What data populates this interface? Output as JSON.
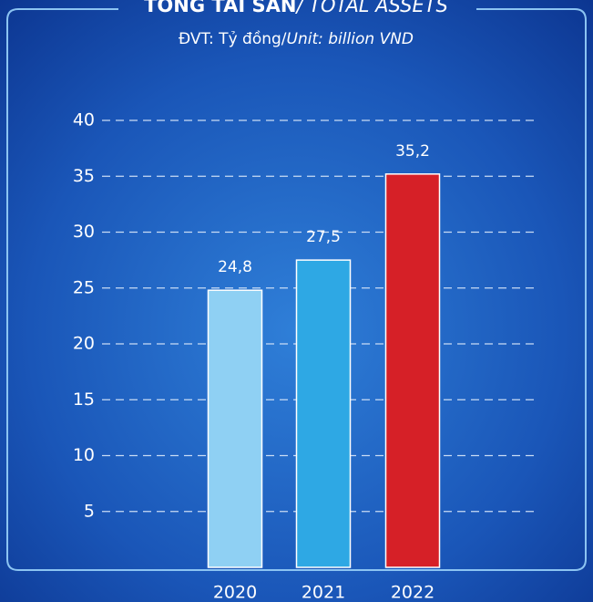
{
  "chart_data": {
    "type": "bar",
    "title": "TỔNG TÀI SẢN",
    "title_en": "/ TOTAL ASSETS",
    "subtitle": "ĐVT: Tỷ đồng/",
    "subtitle_en": "Unit: billion VND",
    "categories": [
      "2020",
      "2021",
      "2022"
    ],
    "values": [
      24.8,
      27.5,
      35.2
    ],
    "value_labels": [
      "24,8",
      "27,5",
      "35,2"
    ],
    "colors": [
      "#8fd0f3",
      "#2ea8e4",
      "#d62027"
    ],
    "ylim": [
      0,
      40
    ],
    "yticks": [
      5,
      10,
      15,
      20,
      25,
      30,
      35,
      40
    ],
    "grid": true
  }
}
